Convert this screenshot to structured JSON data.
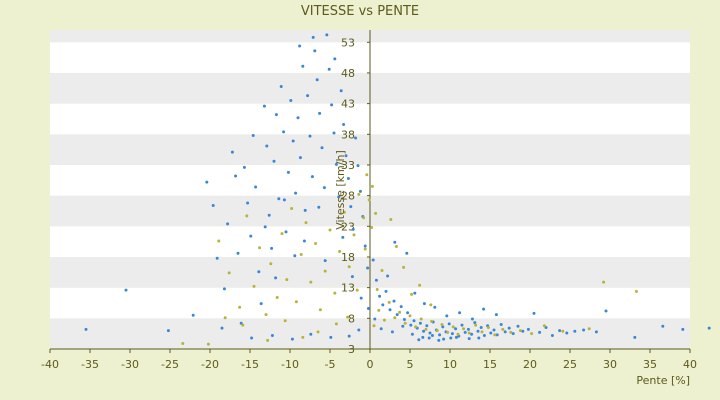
{
  "chart_data": {
    "type": "scatter",
    "title": "VITESSE vs PENTE",
    "xlabel": "Pente [%]",
    "ylabel": "Vitesse [km/h]",
    "xlim": [
      -40,
      40
    ],
    "ylim": [
      3,
      55
    ],
    "x_ticks": [
      "-40",
      "-35",
      "-30",
      "-25",
      "-20",
      "-15",
      "-10",
      "-5",
      "0",
      "5",
      "10",
      "15",
      "20",
      "25",
      "30",
      "35",
      "40"
    ],
    "y_ticks": [
      "3",
      "8",
      "13",
      "18",
      "23",
      "28",
      "33",
      "38",
      "43",
      "48",
      "53"
    ],
    "grid": "horizontal alternating bands",
    "legend": "none",
    "colors": {
      "series_a": "#3a87d6",
      "series_b": "#b9b33a",
      "plot_band_a": "#ffffff",
      "plot_band_b": "#ececec",
      "background": "#eef1cf",
      "axis": "#5c5a1c"
    },
    "series": [
      {
        "color": "#3a87d6",
        "points": [
          [
            -35.5,
            6.2
          ],
          [
            -30.5,
            12.6
          ],
          [
            -25.2,
            6.0
          ],
          [
            -22.1,
            8.5
          ],
          [
            -20.4,
            30.2
          ],
          [
            -19.6,
            26.4
          ],
          [
            -19.1,
            17.8
          ],
          [
            -18.5,
            6.4
          ],
          [
            -18.2,
            12.8
          ],
          [
            -17.8,
            23.4
          ],
          [
            -17.2,
            35.1
          ],
          [
            -16.8,
            31.2
          ],
          [
            -16.5,
            18.6
          ],
          [
            -16.1,
            7.2
          ],
          [
            -15.7,
            32.6
          ],
          [
            -15.3,
            26.8
          ],
          [
            -14.9,
            21.4
          ],
          [
            -14.6,
            37.8
          ],
          [
            -14.3,
            29.4
          ],
          [
            -13.9,
            15.6
          ],
          [
            -13.6,
            10.4
          ],
          [
            -13.2,
            42.6
          ],
          [
            -12.9,
            36.1
          ],
          [
            -12.6,
            24.8
          ],
          [
            -12.3,
            19.4
          ],
          [
            -12.0,
            33.6
          ],
          [
            -11.7,
            41.2
          ],
          [
            -11.4,
            27.5
          ],
          [
            -11.1,
            45.8
          ],
          [
            -10.8,
            38.4
          ],
          [
            -10.5,
            22.1
          ],
          [
            -10.2,
            31.8
          ],
          [
            -9.9,
            43.5
          ],
          [
            -9.6,
            36.9
          ],
          [
            -9.3,
            28.4
          ],
          [
            -9.0,
            40.7
          ],
          [
            -8.7,
            34.2
          ],
          [
            -8.4,
            49.1
          ],
          [
            -8.1,
            25.6
          ],
          [
            -7.8,
            44.3
          ],
          [
            -7.5,
            37.7
          ],
          [
            -7.2,
            31.1
          ],
          [
            -6.9,
            51.6
          ],
          [
            -6.6,
            46.9
          ],
          [
            -6.3,
            41.4
          ],
          [
            -6.0,
            35.8
          ],
          [
            -5.7,
            29.3
          ],
          [
            -5.4,
            54.2
          ],
          [
            -5.1,
            48.6
          ],
          [
            -4.8,
            42.8
          ],
          [
            -4.5,
            38.2
          ],
          [
            -4.2,
            33.1
          ],
          [
            -3.9,
            27.8
          ],
          [
            -3.6,
            45.1
          ],
          [
            -3.3,
            39.6
          ],
          [
            -3.0,
            34.5
          ],
          [
            -2.7,
            30.8
          ],
          [
            -2.4,
            26.2
          ],
          [
            -2.1,
            22.5
          ],
          [
            -1.8,
            37.4
          ],
          [
            -1.5,
            32.9
          ],
          [
            -1.2,
            28.7
          ],
          [
            -0.9,
            24.6
          ],
          [
            -0.6,
            19.8
          ],
          [
            -0.3,
            16.2
          ],
          [
            -8.8,
            52.4
          ],
          [
            -7.1,
            53.8
          ],
          [
            -4.4,
            50.3
          ],
          [
            -6.4,
            26.1
          ],
          [
            -9.4,
            18.2
          ],
          [
            -11.8,
            14.6
          ],
          [
            -13.1,
            22.9
          ],
          [
            -10.7,
            27.3
          ],
          [
            -8.2,
            20.6
          ],
          [
            -5.6,
            17.4
          ],
          [
            -3.4,
            21.2
          ],
          [
            -2.2,
            14.8
          ],
          [
            -1.1,
            11.3
          ],
          [
            -0.2,
            9.6
          ],
          [
            -14.8,
            4.8
          ],
          [
            -12.2,
            5.2
          ],
          [
            -9.7,
            4.6
          ],
          [
            -7.4,
            5.4
          ],
          [
            -4.9,
            4.9
          ],
          [
            -2.6,
            5.1
          ],
          [
            -1.4,
            6.1
          ],
          [
            0.4,
            17.5
          ],
          [
            0.8,
            14.2
          ],
          [
            1.2,
            11.6
          ],
          [
            1.6,
            10.2
          ],
          [
            2.0,
            12.4
          ],
          [
            2.5,
            9.4
          ],
          [
            3.0,
            10.8
          ],
          [
            3.4,
            8.6
          ],
          [
            3.9,
            9.9
          ],
          [
            4.3,
            7.8
          ],
          [
            4.7,
            8.9
          ],
          [
            5.1,
            6.9
          ],
          [
            5.5,
            7.6
          ],
          [
            5.9,
            6.4
          ],
          [
            6.3,
            7.2
          ],
          [
            6.7,
            5.9
          ],
          [
            7.1,
            6.8
          ],
          [
            7.5,
            5.6
          ],
          [
            7.9,
            7.4
          ],
          [
            8.3,
            6.1
          ],
          [
            8.7,
            5.3
          ],
          [
            9.1,
            6.6
          ],
          [
            9.5,
            5.8
          ],
          [
            9.9,
            7.1
          ],
          [
            10.3,
            5.5
          ],
          [
            10.7,
            6.3
          ],
          [
            11.1,
            5.1
          ],
          [
            11.5,
            6.9
          ],
          [
            11.9,
            5.7
          ],
          [
            12.3,
            6.2
          ],
          [
            12.7,
            5.4
          ],
          [
            13.1,
            7.3
          ],
          [
            13.5,
            5.9
          ],
          [
            13.9,
            6.5
          ],
          [
            14.3,
            5.2
          ],
          [
            14.7,
            6.8
          ],
          [
            15.1,
            5.6
          ],
          [
            15.5,
            6.1
          ],
          [
            15.9,
            5.3
          ],
          [
            16.4,
            7.0
          ],
          [
            16.9,
            5.8
          ],
          [
            17.4,
            6.4
          ],
          [
            17.9,
            5.5
          ],
          [
            18.5,
            6.7
          ],
          [
            19.1,
            5.9
          ],
          [
            19.8,
            6.2
          ],
          [
            20.5,
            8.8
          ],
          [
            21.2,
            5.7
          ],
          [
            22.0,
            6.5
          ],
          [
            22.8,
            5.2
          ],
          [
            23.7,
            6.0
          ],
          [
            24.6,
            5.6
          ],
          [
            25.6,
            5.9
          ],
          [
            26.7,
            6.1
          ],
          [
            28.3,
            5.8
          ],
          [
            29.5,
            9.2
          ],
          [
            33.1,
            4.9
          ],
          [
            36.6,
            6.7
          ],
          [
            39.1,
            6.2
          ],
          [
            42.4,
            6.4
          ],
          [
            4.6,
            18.6
          ],
          [
            3.1,
            20.4
          ],
          [
            2.2,
            14.9
          ],
          [
            5.6,
            12.1
          ],
          [
            6.8,
            10.4
          ],
          [
            8.1,
            9.8
          ],
          [
            9.6,
            8.4
          ],
          [
            11.2,
            8.9
          ],
          [
            12.8,
            7.9
          ],
          [
            14.2,
            9.5
          ],
          [
            15.8,
            8.6
          ],
          [
            7.4,
            4.8
          ],
          [
            9.2,
            4.6
          ],
          [
            10.8,
            4.9
          ],
          [
            12.4,
            4.7
          ],
          [
            6.1,
            4.5
          ],
          [
            8.6,
            4.4
          ],
          [
            13.6,
            4.8
          ],
          [
            1.4,
            6.3
          ],
          [
            0.6,
            7.9
          ],
          [
            2.8,
            5.8
          ],
          [
            4.1,
            6.7
          ],
          [
            5.3,
            5.4
          ],
          [
            6.6,
            4.9
          ],
          [
            7.8,
            5.2
          ],
          [
            10.1,
            4.8
          ]
        ]
      },
      {
        "color": "#b9b33a",
        "points": [
          [
            -20.2,
            3.8
          ],
          [
            -18.9,
            20.6
          ],
          [
            -17.6,
            15.4
          ],
          [
            -16.3,
            9.8
          ],
          [
            -15.4,
            24.7
          ],
          [
            -14.5,
            13.2
          ],
          [
            -13.8,
            19.5
          ],
          [
            -13.0,
            8.6
          ],
          [
            -12.4,
            16.9
          ],
          [
            -11.6,
            11.4
          ],
          [
            -11.0,
            21.8
          ],
          [
            -10.4,
            14.3
          ],
          [
            -9.8,
            25.9
          ],
          [
            -9.2,
            10.7
          ],
          [
            -8.6,
            18.4
          ],
          [
            -8.0,
            23.6
          ],
          [
            -7.4,
            13.9
          ],
          [
            -6.8,
            20.2
          ],
          [
            -6.2,
            9.4
          ],
          [
            -5.6,
            15.7
          ],
          [
            -5.0,
            22.4
          ],
          [
            -4.4,
            12.1
          ],
          [
            -3.8,
            18.9
          ],
          [
            -3.2,
            25.3
          ],
          [
            -2.6,
            16.4
          ],
          [
            -2.0,
            21.6
          ],
          [
            -1.4,
            28.2
          ],
          [
            -0.8,
            24.4
          ],
          [
            -0.4,
            31.4
          ],
          [
            -0.1,
            27.3
          ],
          [
            0.3,
            29.5
          ],
          [
            0.7,
            25.1
          ],
          [
            0.2,
            22.8
          ],
          [
            -0.6,
            19.3
          ],
          [
            -1.6,
            12.6
          ],
          [
            -2.8,
            8.2
          ],
          [
            -4.2,
            7.1
          ],
          [
            -6.5,
            5.8
          ],
          [
            -8.4,
            4.9
          ],
          [
            -10.6,
            7.6
          ],
          [
            -12.8,
            4.4
          ],
          [
            -15.9,
            6.9
          ],
          [
            -18.1,
            8.1
          ],
          [
            -23.4,
            3.9
          ],
          [
            0.5,
            6.8
          ],
          [
            1.1,
            9.3
          ],
          [
            1.8,
            7.7
          ],
          [
            2.4,
            10.6
          ],
          [
            3.1,
            8.1
          ],
          [
            3.7,
            9.0
          ],
          [
            4.4,
            7.2
          ],
          [
            5.0,
            8.4
          ],
          [
            5.7,
            6.6
          ],
          [
            6.4,
            7.9
          ],
          [
            7.0,
            6.2
          ],
          [
            7.7,
            7.5
          ],
          [
            8.4,
            6.0
          ],
          [
            9.0,
            7.0
          ],
          [
            9.7,
            5.7
          ],
          [
            10.4,
            6.6
          ],
          [
            11.0,
            5.4
          ],
          [
            11.7,
            6.3
          ],
          [
            12.4,
            5.6
          ],
          [
            13.2,
            6.9
          ],
          [
            14.0,
            5.8
          ],
          [
            14.8,
            6.5
          ],
          [
            15.6,
            5.3
          ],
          [
            16.6,
            6.2
          ],
          [
            17.6,
            5.7
          ],
          [
            18.8,
            6.0
          ],
          [
            20.2,
            5.5
          ],
          [
            21.8,
            6.8
          ],
          [
            24.1,
            5.9
          ],
          [
            27.4,
            6.3
          ],
          [
            29.2,
            13.9
          ],
          [
            33.3,
            12.4
          ],
          [
            2.6,
            24.1
          ],
          [
            3.3,
            19.7
          ],
          [
            4.2,
            16.3
          ],
          [
            5.2,
            11.9
          ],
          [
            6.2,
            13.4
          ],
          [
            7.6,
            10.2
          ],
          [
            1.5,
            15.8
          ],
          [
            0.9,
            12.7
          ]
        ]
      }
    ]
  }
}
